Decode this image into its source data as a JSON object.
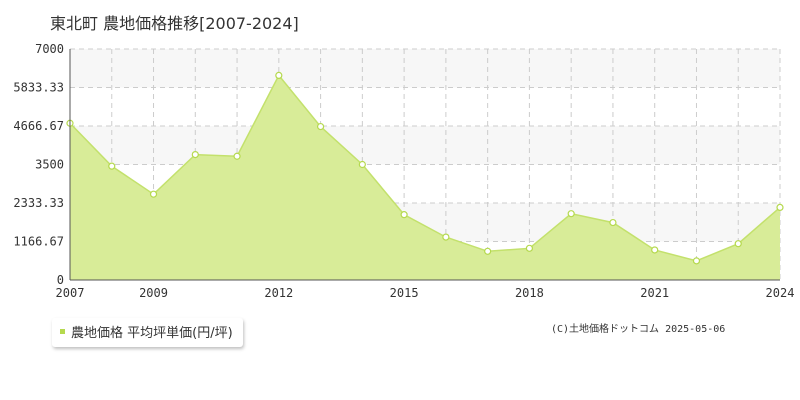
{
  "title": "東北町 農地価格推移[2007-2024]",
  "legend": {
    "label": "農地価格 平均坪単価(円/坪)"
  },
  "credit": "(C)土地価格ドットコム 2025-05-06",
  "colors": {
    "fill": "#d8ec98",
    "line": "#c3e16c",
    "marker": "#b5d94e",
    "band": "#f7f7f7",
    "grid": "#cccccc"
  },
  "chart_data": {
    "type": "area",
    "x": [
      2007,
      2008,
      2009,
      2010,
      2011,
      2012,
      2013,
      2014,
      2015,
      2016,
      2017,
      2018,
      2019,
      2020,
      2021,
      2022,
      2023,
      2024
    ],
    "series": [
      {
        "name": "農地価格 平均坪単価(円/坪)",
        "values": [
          4750,
          3450,
          2600,
          3800,
          3750,
          6200,
          4650,
          3500,
          1980,
          1300,
          870,
          960,
          2010,
          1740,
          910,
          580,
          1100,
          2200
        ]
      }
    ],
    "xticks": [
      "2007",
      "2009",
      "2012",
      "2015",
      "2018",
      "2021",
      "2024"
    ],
    "yticks": [
      "0",
      "1166.67",
      "2333.33",
      "3500",
      "4666.67",
      "5833.33",
      "7000"
    ],
    "ylim": [
      0,
      7000
    ],
    "xlim": [
      2007,
      2024
    ],
    "grid": true
  }
}
